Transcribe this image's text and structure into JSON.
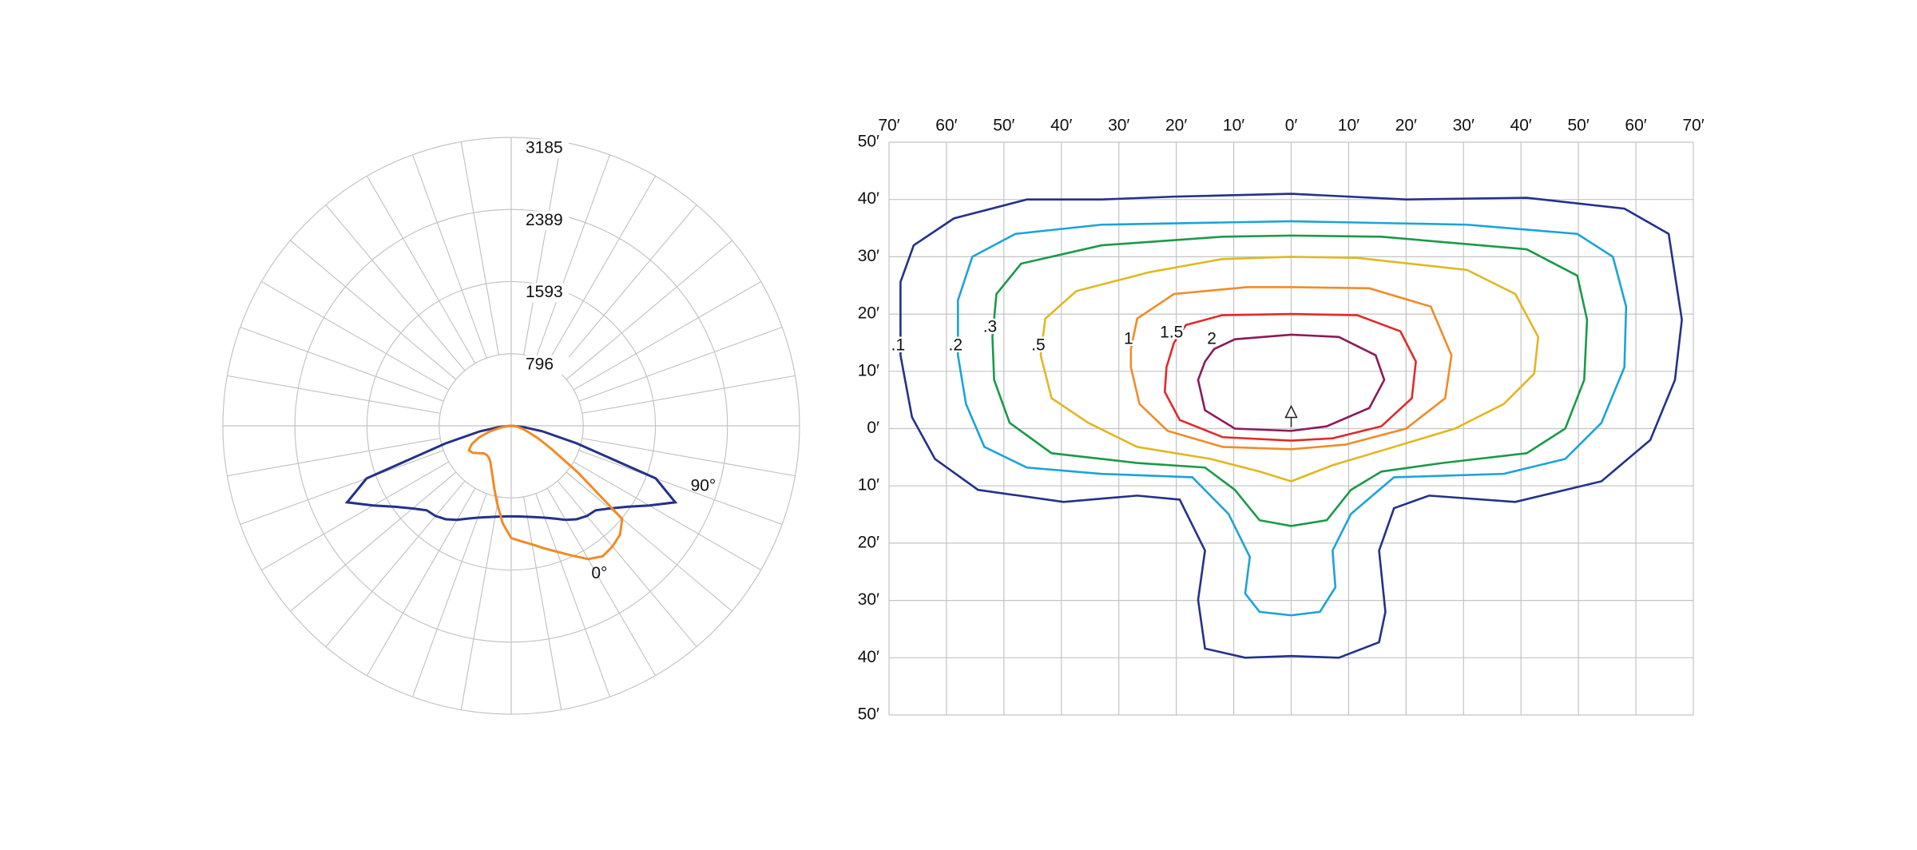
{
  "chart_data": [
    {
      "type": "polar",
      "theta": [
        -90,
        -85,
        -80,
        -75,
        -70,
        -65,
        -60,
        -55,
        -50,
        -45,
        -40,
        -35,
        -30,
        -25,
        -20,
        -15,
        -10,
        -5,
        0,
        5,
        10,
        15,
        20,
        25,
        30,
        35,
        40,
        45,
        50,
        55,
        60,
        65,
        70,
        75,
        80,
        85,
        90
      ],
      "rlim": [
        0,
        3185
      ],
      "rticks": [
        796,
        1593,
        2389,
        3185
      ],
      "series": [
        {
          "name": "90°",
          "color": "#24318a",
          "values": [
            0,
            120,
            350,
            750,
            1700,
            2000,
            1760,
            1560,
            1420,
            1320,
            1300,
            1260,
            1200,
            1130,
            1080,
            1045,
            1020,
            1005,
            1000,
            1005,
            1020,
            1045,
            1080,
            1130,
            1200,
            1260,
            1300,
            1320,
            1420,
            1560,
            1760,
            2000,
            1700,
            750,
            350,
            120,
            0
          ]
        },
        {
          "name": "0°",
          "color": "#f28a24",
          "values": [
            0,
            50,
            120,
            250,
            380,
            480,
            540,
            520,
            470,
            430,
            420,
            430,
            460,
            520,
            600,
            720,
            880,
            1080,
            1240,
            1280,
            1330,
            1400,
            1480,
            1580,
            1700,
            1760,
            1740,
            1700,
            1600,
            900,
            520,
            330,
            200,
            130,
            80,
            40,
            0
          ]
        }
      ]
    },
    {
      "type": "contour",
      "xlim": [
        -70,
        70
      ],
      "ylim": [
        -50,
        50
      ],
      "xticks": [
        {
          "value": -70,
          "label": "70′"
        },
        {
          "value": -60,
          "label": "60′"
        },
        {
          "value": -50,
          "label": "50′"
        },
        {
          "value": -40,
          "label": "40′"
        },
        {
          "value": -30,
          "label": "30′"
        },
        {
          "value": -20,
          "label": "20′"
        },
        {
          "value": -10,
          "label": "10′"
        },
        {
          "value": 0,
          "label": "0′"
        },
        {
          "value": 10,
          "label": "10′"
        },
        {
          "value": 20,
          "label": "20′"
        },
        {
          "value": 30,
          "label": "30′"
        },
        {
          "value": 40,
          "label": "40′"
        },
        {
          "value": 50,
          "label": "50′"
        },
        {
          "value": 60,
          "label": "60′"
        },
        {
          "value": 70,
          "label": "70′"
        }
      ],
      "yticks": [
        {
          "value": 50,
          "label": "50′"
        },
        {
          "value": 40,
          "label": "40′"
        },
        {
          "value": 30,
          "label": "30′"
        },
        {
          "value": 20,
          "label": "20′"
        },
        {
          "value": 10,
          "label": "10′"
        },
        {
          "value": 0,
          "label": "0′"
        },
        {
          "value": -10,
          "label": "10′"
        },
        {
          "value": -20,
          "label": "20′"
        },
        {
          "value": -30,
          "label": "30′"
        },
        {
          "value": -40,
          "label": "40′"
        },
        {
          "value": -50,
          "label": "50′"
        }
      ],
      "series": [
        {
          "name": ".1",
          "color": "#24318a",
          "x": [
            -68,
            -68,
            -65.7,
            -58.7,
            -46,
            -33,
            -20.4,
            0,
            20,
            41,
            58,
            65.7,
            68,
            66.8,
            62.5,
            54,
            39,
            24,
            17.9,
            15.3,
            16.4,
            15.3,
            8.3,
            0,
            -8,
            -15,
            -16.2,
            -15,
            -19.4,
            -26.8,
            -39.6,
            -54.5,
            -62,
            -66
          ],
          "y": [
            12.8,
            25.6,
            32,
            36.7,
            40,
            40,
            40.5,
            41,
            40,
            40.3,
            38.4,
            34,
            19,
            8.5,
            -2,
            -9.2,
            -12.8,
            -11.7,
            -13.9,
            -21.3,
            -32,
            -37.3,
            -40,
            -39.7,
            -40,
            -38.4,
            -29.9,
            -21.3,
            -12.4,
            -11.7,
            -12.8,
            -10.7,
            -5.3,
            2
          ]
        },
        {
          "name": ".2",
          "color": "#1ba3d9",
          "x": [
            -58,
            -58,
            -55.5,
            -48,
            -33,
            0,
            30.6,
            49.8,
            56,
            58.3,
            58,
            54,
            47.7,
            37,
            17.9,
            10.4,
            7.2,
            7.7,
            5,
            0,
            -5.5,
            -8,
            -7.2,
            -10.9,
            -17.2,
            -33,
            -46,
            -53.4,
            -56.6
          ],
          "y": [
            12.8,
            22.4,
            30,
            34,
            35.6,
            36.2,
            35.6,
            34,
            30,
            21.3,
            10.7,
            1,
            -5.3,
            -7.9,
            -8.5,
            -14.9,
            -21.3,
            -27.7,
            -32,
            -32.6,
            -32,
            -28.8,
            -22.4,
            -14.9,
            -8.5,
            -7.9,
            -6.8,
            -3.2,
            4.3
          ]
        },
        {
          "name": ".3",
          "color": "#1a9a48",
          "x": [
            -52,
            -51.3,
            -47,
            -33,
            -12,
            0,
            15.7,
            41,
            49.8,
            51.5,
            51,
            47.7,
            41,
            26.4,
            15.7,
            10.4,
            6.2,
            0,
            -5.5,
            -9.8,
            -15,
            -26.8,
            -41.7,
            -49,
            -51.7
          ],
          "y": [
            16,
            23.5,
            28.8,
            32,
            33.5,
            33.7,
            33.5,
            31.3,
            26.7,
            19,
            8.5,
            0,
            -4.3,
            -6,
            -7.5,
            -10.7,
            -16,
            -17,
            -16,
            -10.7,
            -6.8,
            -6,
            -4.3,
            1,
            8.5
          ]
        },
        {
          "name": ".5",
          "color": "#e0b820",
          "x": [
            -43.6,
            -42.8,
            -37.4,
            -24.7,
            -12,
            0,
            11.5,
            30.6,
            39,
            43,
            42.3,
            37,
            28.5,
            17.9,
            7.2,
            0,
            -5.5,
            -14,
            -26.8,
            -35.3,
            -41.7
          ],
          "y": [
            12.8,
            19.2,
            24,
            27.3,
            29.6,
            30,
            29.8,
            27.7,
            23.5,
            16,
            9.6,
            4.3,
            0,
            -3.2,
            -6.4,
            -9.2,
            -7.5,
            -5.3,
            -3.2,
            1,
            5.3
          ]
        },
        {
          "name": "1",
          "color": "#f08c28",
          "x": [
            -27.9,
            -26.8,
            -20.4,
            -7.7,
            0,
            13.6,
            24.3,
            27.9,
            26.8,
            20,
            9.4,
            0,
            -11.9,
            -21.5,
            -26.4,
            -27.9
          ],
          "y": [
            13.9,
            19.2,
            23.5,
            24.7,
            24.7,
            24.5,
            21.3,
            12.8,
            5.3,
            0,
            -2.8,
            -3.6,
            -3.2,
            -0.4,
            4.3,
            10.7
          ]
        },
        {
          "name": "1.5",
          "color": "#e02a2a",
          "x": [
            -20.4,
            -18.3,
            -12,
            0,
            11.5,
            19,
            21.7,
            21,
            15.7,
            7.2,
            0,
            -11.9,
            -19.4,
            -22,
            -21.7
          ],
          "y": [
            15,
            18.1,
            19.8,
            20,
            19.8,
            17,
            11.7,
            5.3,
            0.4,
            -1.7,
            -2.1,
            -1.5,
            1.5,
            6.4,
            10.7
          ]
        },
        {
          "name": "2",
          "color": "#8b1a5a",
          "x": [
            -13.4,
            -9.8,
            0,
            8.3,
            14.7,
            16.2,
            13.6,
            6.2,
            0,
            -9.8,
            -15,
            -16.2,
            -15
          ],
          "y": [
            13.9,
            15.6,
            16.4,
            16,
            12.8,
            8.5,
            3.6,
            0.4,
            -0.4,
            0,
            3.2,
            8.5,
            11.7
          ]
        }
      ]
    }
  ]
}
